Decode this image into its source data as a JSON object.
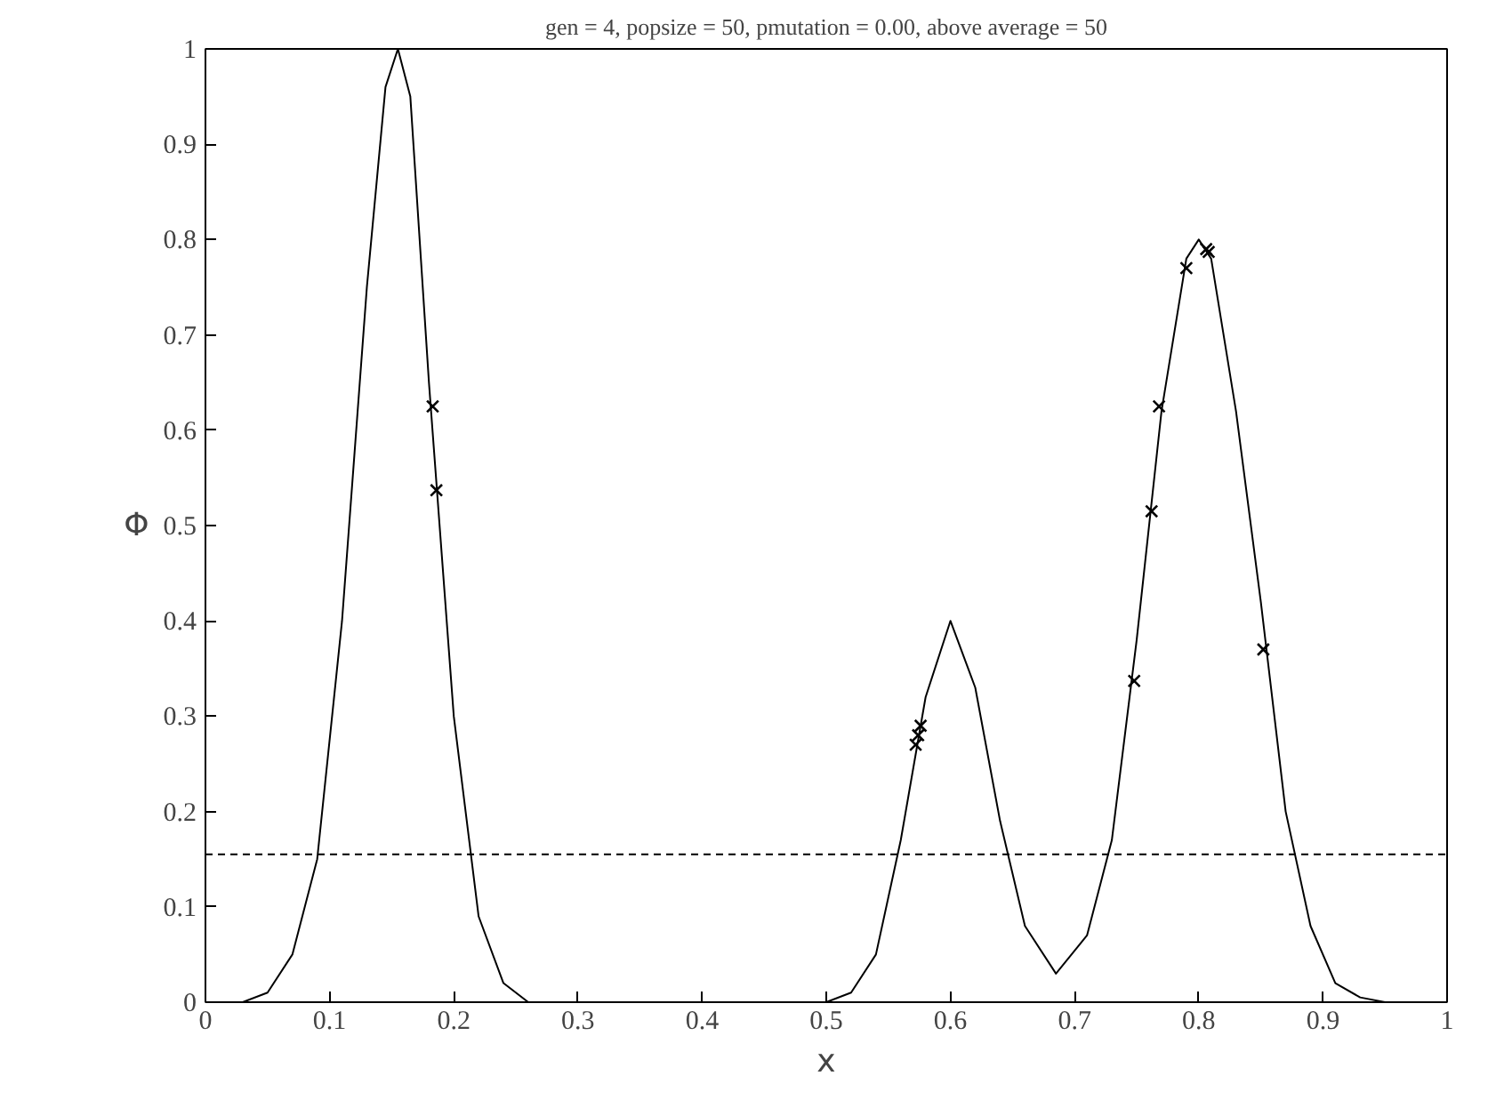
{
  "chart_data": {
    "type": "line",
    "title": "gen = 4, popsize = 50, pmutation = 0.00, above average = 50",
    "xlabel": "x",
    "ylabel": "Φ",
    "xlim": [
      0,
      1
    ],
    "ylim": [
      0,
      1
    ],
    "xticks": [
      0,
      0.1,
      0.2,
      0.3,
      0.4,
      0.5,
      0.6,
      0.7,
      0.8,
      0.9,
      1
    ],
    "yticks": [
      0,
      0.1,
      0.2,
      0.3,
      0.4,
      0.5,
      0.6,
      0.7,
      0.8,
      0.9,
      1
    ],
    "grid": false,
    "series": [
      {
        "color": "#000000",
        "marker": "none",
        "line_style": "solid",
        "x": [
          0,
          0.03,
          0.05,
          0.07,
          0.09,
          0.11,
          0.13,
          0.145,
          0.155,
          0.165,
          0.18,
          0.2,
          0.22,
          0.24,
          0.26,
          0.5,
          0.52,
          0.54,
          0.56,
          0.58,
          0.6,
          0.62,
          0.64,
          0.66,
          0.685,
          0.71,
          0.73,
          0.75,
          0.77,
          0.79,
          0.8,
          0.81,
          0.83,
          0.85,
          0.87,
          0.89,
          0.91,
          0.93,
          0.95,
          1
        ],
        "values": [
          0,
          0,
          0.01,
          0.05,
          0.15,
          0.4,
          0.75,
          0.96,
          1,
          0.95,
          0.65,
          0.3,
          0.09,
          0.02,
          0,
          0,
          0.01,
          0.05,
          0.17,
          0.32,
          0.4,
          0.33,
          0.19,
          0.08,
          0.03,
          0.07,
          0.17,
          0.38,
          0.62,
          0.78,
          0.8,
          0.78,
          0.62,
          0.42,
          0.2,
          0.08,
          0.02,
          0.005,
          0,
          0
        ]
      },
      {
        "type": "scatter",
        "color": "#000000",
        "marker": "cross",
        "x": [
          0.183,
          0.186,
          0.572,
          0.574,
          0.576,
          0.748,
          0.762,
          0.768,
          0.79,
          0.806,
          0.808,
          0.852
        ],
        "values": [
          0.625,
          0.537,
          0.27,
          0.28,
          0.29,
          0.337,
          0.515,
          0.625,
          0.77,
          0.79,
          0.787,
          0.37
        ]
      }
    ],
    "ref_lines": [
      {
        "axis": "y",
        "value": 0.155,
        "color": "#000000",
        "line_style": "dashed"
      }
    ]
  }
}
